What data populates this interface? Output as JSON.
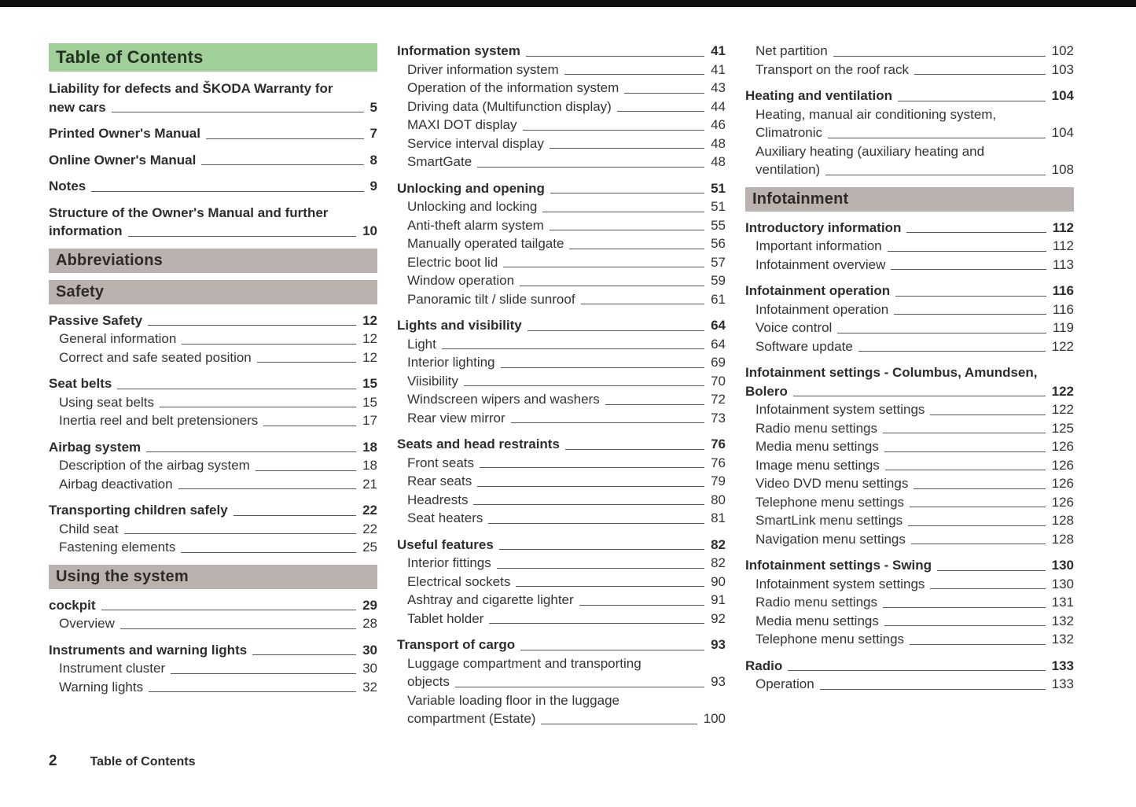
{
  "document_title": "Table of Contents",
  "colors": {
    "header_green_bg": "#a1cf98",
    "header_gray_bg": "#b9b2af",
    "body_text": "#343434",
    "leader_line": "#565656",
    "top_bar": "#101010"
  },
  "footer": {
    "page_number": "2",
    "title": "Table of Contents"
  },
  "columns": [
    {
      "blocks": [
        {
          "type": "header_green",
          "text": "Table of Contents"
        },
        {
          "type": "group",
          "entries": [
            {
              "lines": [
                "Liability for defects and ŠKODA Warranty for",
                "new cars"
              ],
              "page": "5",
              "bold": true
            }
          ]
        },
        {
          "type": "group",
          "entries": [
            {
              "label": "Printed Owner's Manual",
              "page": "7",
              "bold": true
            }
          ]
        },
        {
          "type": "group",
          "entries": [
            {
              "label": "Online Owner's Manual",
              "page": "8",
              "bold": true
            }
          ]
        },
        {
          "type": "group",
          "entries": [
            {
              "label": "Notes",
              "page": "9",
              "bold": true
            }
          ]
        },
        {
          "type": "group",
          "entries": [
            {
              "lines": [
                "Structure of the Owner's Manual and further",
                "information"
              ],
              "page": "10",
              "bold": true
            }
          ]
        },
        {
          "type": "header_gray",
          "text": "Abbreviations"
        },
        {
          "type": "header_gray",
          "text": "Safety"
        },
        {
          "type": "group",
          "entries": [
            {
              "label": "Passive Safety",
              "page": "12",
              "bold": true
            },
            {
              "label": "General information",
              "page": "12",
              "indent": true
            },
            {
              "label": "Correct and safe seated position",
              "page": "12",
              "indent": true
            }
          ]
        },
        {
          "type": "group",
          "entries": [
            {
              "label": "Seat belts",
              "page": "15",
              "bold": true
            },
            {
              "label": "Using seat belts",
              "page": "15",
              "indent": true
            },
            {
              "label": "Inertia reel and belt pretensioners",
              "page": "17",
              "indent": true
            }
          ]
        },
        {
          "type": "group",
          "entries": [
            {
              "label": "Airbag system",
              "page": "18",
              "bold": true
            },
            {
              "label": "Description of the airbag system",
              "page": "18",
              "indent": true
            },
            {
              "label": "Airbag deactivation",
              "page": "21",
              "indent": true
            }
          ]
        },
        {
          "type": "group",
          "entries": [
            {
              "label": "Transporting children safely",
              "page": "22",
              "bold": true
            },
            {
              "label": "Child seat",
              "page": "22",
              "indent": true
            },
            {
              "label": "Fastening elements",
              "page": "25",
              "indent": true
            }
          ]
        },
        {
          "type": "header_gray",
          "text": "Using the system"
        },
        {
          "type": "group",
          "entries": [
            {
              "label": "cockpit",
              "page": "29",
              "bold": true
            },
            {
              "label": "Overview",
              "page": "28",
              "indent": true
            }
          ]
        },
        {
          "type": "group",
          "entries": [
            {
              "label": "Instruments and warning lights",
              "page": "30",
              "bold": true
            },
            {
              "label": "Instrument cluster",
              "page": "30",
              "indent": true
            },
            {
              "label": "Warning lights",
              "page": "32",
              "indent": true
            }
          ]
        }
      ]
    },
    {
      "blocks": [
        {
          "type": "group",
          "entries": [
            {
              "label": "Information system",
              "page": "41",
              "bold": true
            },
            {
              "label": "Driver information system",
              "page": "41",
              "indent": true
            },
            {
              "label": "Operation of the information system",
              "page": "43",
              "indent": true
            },
            {
              "label": "Driving data (Multifunction display)",
              "page": "44",
              "indent": true
            },
            {
              "label": "MAXI DOT display",
              "page": "46",
              "indent": true
            },
            {
              "label": "Service interval display",
              "page": "48",
              "indent": true
            },
            {
              "label": "SmartGate",
              "page": "48",
              "indent": true
            }
          ]
        },
        {
          "type": "group",
          "entries": [
            {
              "label": "Unlocking and opening",
              "page": "51",
              "bold": true
            },
            {
              "label": "Unlocking and locking",
              "page": "51",
              "indent": true
            },
            {
              "label": "Anti-theft alarm system",
              "page": "55",
              "indent": true
            },
            {
              "label": "Manually operated tailgate",
              "page": "56",
              "indent": true
            },
            {
              "label": "Electric boot lid",
              "page": "57",
              "indent": true
            },
            {
              "label": "Window operation",
              "page": "59",
              "indent": true
            },
            {
              "label": "Panoramic tilt / slide sunroof",
              "page": "61",
              "indent": true
            }
          ]
        },
        {
          "type": "group",
          "entries": [
            {
              "label": "Lights and visibility",
              "page": "64",
              "bold": true
            },
            {
              "label": "Light",
              "page": "64",
              "indent": true
            },
            {
              "label": "Interior lighting",
              "page": "69",
              "indent": true
            },
            {
              "label": "Viisibility",
              "page": "70",
              "indent": true
            },
            {
              "label": "Windscreen wipers and washers",
              "page": "72",
              "indent": true
            },
            {
              "label": "Rear view mirror",
              "page": "73",
              "indent": true
            }
          ]
        },
        {
          "type": "group",
          "entries": [
            {
              "label": "Seats and head restraints",
              "page": "76",
              "bold": true
            },
            {
              "label": "Front seats",
              "page": "76",
              "indent": true
            },
            {
              "label": "Rear seats",
              "page": "79",
              "indent": true
            },
            {
              "label": "Headrests",
              "page": "80",
              "indent": true
            },
            {
              "label": "Seat heaters",
              "page": "81",
              "indent": true
            }
          ]
        },
        {
          "type": "group",
          "entries": [
            {
              "label": "Useful features",
              "page": "82",
              "bold": true
            },
            {
              "label": "Interior fittings",
              "page": "82",
              "indent": true
            },
            {
              "label": "Electrical sockets",
              "page": "90",
              "indent": true
            },
            {
              "label": "Ashtray and cigarette lighter",
              "page": "91",
              "indent": true
            },
            {
              "label": "Tablet holder",
              "page": "92",
              "indent": true
            }
          ]
        },
        {
          "type": "group",
          "entries": [
            {
              "label": "Transport of cargo",
              "page": "93",
              "bold": true
            },
            {
              "lines": [
                "Luggage compartment and transporting",
                "objects"
              ],
              "page": "93",
              "indent": true
            },
            {
              "lines": [
                "Variable loading floor in the luggage",
                "compartment (Estate)"
              ],
              "page": "100",
              "indent": true
            }
          ]
        }
      ]
    },
    {
      "blocks": [
        {
          "type": "group",
          "entries": [
            {
              "label": "Net partition",
              "page": "102",
              "indent": true
            },
            {
              "label": "Transport on the roof rack",
              "page": "103",
              "indent": true
            }
          ]
        },
        {
          "type": "group",
          "entries": [
            {
              "label": "Heating and ventilation",
              "page": "104",
              "bold": true
            },
            {
              "lines": [
                "Heating, manual air conditioning system,",
                "Climatronic"
              ],
              "page": "104",
              "indent": true
            },
            {
              "lines": [
                "Auxiliary heating (auxiliary heating and",
                "ventilation)"
              ],
              "page": "108",
              "indent": true
            }
          ]
        },
        {
          "type": "header_gray",
          "text": "Infotainment"
        },
        {
          "type": "group",
          "entries": [
            {
              "label": "Introductory information",
              "page": "112",
              "bold": true
            },
            {
              "label": "Important information",
              "page": "112",
              "indent": true
            },
            {
              "label": "Infotainment overview",
              "page": "113",
              "indent": true
            }
          ]
        },
        {
          "type": "group",
          "entries": [
            {
              "label": "Infotainment operation",
              "page": "116",
              "bold": true
            },
            {
              "label": "Infotainment operation",
              "page": "116",
              "indent": true
            },
            {
              "label": "Voice control",
              "page": "119",
              "indent": true
            },
            {
              "label": "Software update",
              "page": "122",
              "indent": true
            }
          ]
        },
        {
          "type": "group",
          "entries": [
            {
              "lines": [
                "Infotainment settings - Columbus, Amundsen,",
                "Bolero"
              ],
              "page": "122",
              "bold": true
            },
            {
              "label": "Infotainment system settings",
              "page": "122",
              "indent": true
            },
            {
              "label": "Radio menu settings",
              "page": "125",
              "indent": true
            },
            {
              "label": "Media menu settings",
              "page": "126",
              "indent": true
            },
            {
              "label": "Image menu settings",
              "page": "126",
              "indent": true
            },
            {
              "label": "Video DVD menu settings",
              "page": "126",
              "indent": true
            },
            {
              "label": "Telephone menu settings",
              "page": "126",
              "indent": true
            },
            {
              "label": "SmartLink menu settings",
              "page": "128",
              "indent": true
            },
            {
              "label": "Navigation menu settings",
              "page": "128",
              "indent": true
            }
          ]
        },
        {
          "type": "group",
          "entries": [
            {
              "label": "Infotainment settings - Swing",
              "page": "130",
              "bold": true
            },
            {
              "label": "Infotainment system settings",
              "page": "130",
              "indent": true
            },
            {
              "label": "Radio menu settings",
              "page": "131",
              "indent": true
            },
            {
              "label": "Media menu settings",
              "page": "132",
              "indent": true
            },
            {
              "label": "Telephone menu settings",
              "page": "132",
              "indent": true
            }
          ]
        },
        {
          "type": "group",
          "entries": [
            {
              "label": "Radio",
              "page": "133",
              "bold": true
            },
            {
              "label": "Operation",
              "page": "133",
              "indent": true
            }
          ]
        }
      ]
    }
  ]
}
